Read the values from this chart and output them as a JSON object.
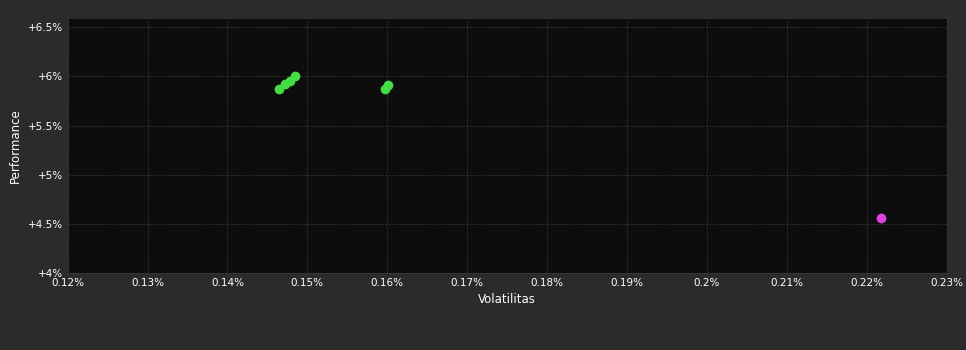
{
  "background_color": "#2b2b2b",
  "plot_bg_color": "#0d0d0d",
  "grid_color": "#3a3a3a",
  "text_color": "#ffffff",
  "xlabel": "Volatilitas",
  "ylabel": "Performance",
  "xlim": [
    0.0012,
    0.0023
  ],
  "ylim": [
    0.04,
    0.066
  ],
  "yticks": [
    0.04,
    0.045,
    0.05,
    0.055,
    0.06,
    0.065
  ],
  "ytick_labels": [
    "+4%",
    "+4.5%",
    "+5%",
    "+5.5%",
    "+6%",
    "+6.5%"
  ],
  "xticks": [
    0.0012,
    0.0013,
    0.0014,
    0.0015,
    0.0016,
    0.0017,
    0.0018,
    0.0019,
    0.002,
    0.0021,
    0.0022,
    0.0023
  ],
  "xtick_labels": [
    "0.12%",
    "0.13%",
    "0.14%",
    "0.15%",
    "0.16%",
    "0.17%",
    "0.18%",
    "0.19%",
    "0.2%",
    "0.21%",
    "0.22%",
    "0.23%"
  ],
  "green_points": [
    [
      0.001465,
      0.05875
    ],
    [
      0.001472,
      0.0592
    ],
    [
      0.001478,
      0.05955
    ],
    [
      0.001485,
      0.06008
    ],
    [
      0.001597,
      0.0587
    ],
    [
      0.001601,
      0.05918
    ]
  ],
  "magenta_points": [
    [
      0.002218,
      0.04555
    ]
  ],
  "green_color": "#44dd44",
  "magenta_color": "#dd44dd",
  "marker_size": 6
}
